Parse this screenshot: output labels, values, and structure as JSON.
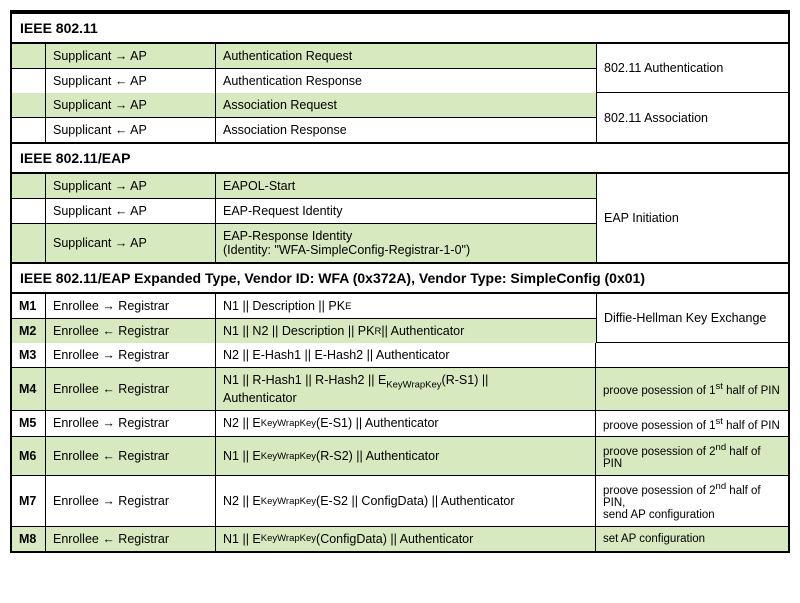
{
  "colors": {
    "green": "#d7e9bf",
    "white": "#ffffff",
    "border": "#000000"
  },
  "sections": [
    {
      "title": "IEEE 802.11"
    },
    {
      "title": "IEEE 802.11/EAP"
    },
    {
      "title": "IEEE 802.11/EAP Expanded Type, Vendor ID: WFA (0x372A), Vendor Type: SimpleConfig (0x01)"
    }
  ],
  "s1": {
    "group1_note": "802.11 Authentication",
    "group2_note": "802.11 Association",
    "r1": {
      "dir": "Supplicant → AP",
      "msg": "Authentication Request",
      "bg": "green"
    },
    "r2": {
      "dir": "Supplicant ← AP",
      "msg": "Authentication Response",
      "bg": "white"
    },
    "r3": {
      "dir": "Supplicant → AP",
      "msg": "Association Request",
      "bg": "green"
    },
    "r4": {
      "dir": "Supplicant ← AP",
      "msg": "Association Response",
      "bg": "white"
    }
  },
  "s2": {
    "note": "EAP Initiation",
    "r1": {
      "dir": "Supplicant → AP",
      "msg": "EAPOL-Start",
      "bg": "green"
    },
    "r2": {
      "dir": "Supplicant ← AP",
      "msg": "EAP-Request Identity",
      "bg": "white"
    },
    "r3": {
      "dir": "Supplicant → AP",
      "msg_line1": "EAP-Response Identity",
      "msg_line2": "(Identity: \"WFA-SimpleConfig-Registrar-1-0\")",
      "bg": "green"
    }
  },
  "s3": {
    "dh_note": "Diffie-Hellman Key Exchange",
    "m1": {
      "id": "M1",
      "dir": "Enrollee → Registrar",
      "msg": "N1 || Description || PK",
      "msg_sub": "E",
      "bg": "white"
    },
    "m2": {
      "id": "M2",
      "dir": "Enrollee ← Registrar",
      "msg_pre": "N1 || N2 || Description || PK",
      "msg_sub": "R",
      "msg_post": " || Authenticator",
      "bg": "green"
    },
    "m3": {
      "id": "M3",
      "dir": "Enrollee → Registrar",
      "msg": "N2 || E-Hash1 || E-Hash2 || Authenticator",
      "note": "",
      "bg": "white"
    },
    "m4": {
      "id": "M4",
      "dir": "Enrollee ← Registrar",
      "msg_pre": "N1 || R-Hash1 || R-Hash2 || E",
      "msg_sub": "KeyWrapKey",
      "msg_mid": "(R-S1) ||",
      "msg_line2": "Authenticator",
      "note_pre": "proove posession of 1",
      "note_sup": "st",
      "note_post": " half of PIN",
      "bg": "green"
    },
    "m5": {
      "id": "M5",
      "dir": "Enrollee → Registrar",
      "msg_pre": "N2 || E",
      "msg_sub": "KeyWrapKey",
      "msg_post": "(E-S1) || Authenticator",
      "note_pre": "proove posession of 1",
      "note_sup": "st",
      "note_post": " half of PIN",
      "bg": "white"
    },
    "m6": {
      "id": "M6",
      "dir": "Enrollee ← Registrar",
      "msg_pre": "N1 || E",
      "msg_sub": "KeyWrapKey",
      "msg_post": "(R-S2) || Authenticator",
      "note_pre": "proove posession of 2",
      "note_sup": "nd",
      "note_post": " half of PIN",
      "bg": "green"
    },
    "m7": {
      "id": "M7",
      "dir": "Enrollee → Registrar",
      "msg_pre": "N2 || E",
      "msg_sub": "KeyWrapKey",
      "msg_post": "(E-S2 || ConfigData) || Authenticator",
      "note_pre": "proove posession of 2",
      "note_sup": "nd",
      "note_post": " half of PIN,",
      "note_line2": "send AP configuration",
      "bg": "white"
    },
    "m8": {
      "id": "M8",
      "dir": "Enrollee ← Registrar",
      "msg_pre": "N1 || E",
      "msg_sub": "KeyWrapKey",
      "msg_post": "(ConfigData) || Authenticator",
      "note": "set AP configuration",
      "bg": "green"
    }
  }
}
